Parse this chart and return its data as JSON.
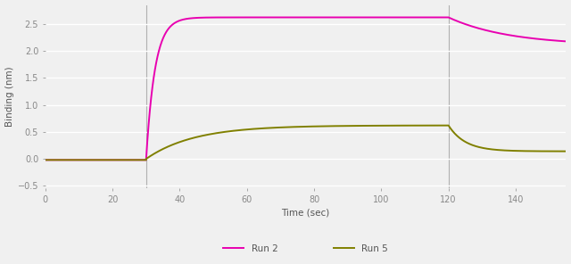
{
  "title": "",
  "xlabel": "Time (sec)",
  "ylabel": "Binding (nm)",
  "bg_color": "#f0f0f0",
  "plot_bg_color": "#f0f0f0",
  "grid_color": "#ffffff",
  "run2_color": "#e800b0",
  "run5_color": "#808000",
  "xlim": [
    0,
    155
  ],
  "ylim": [
    -0.55,
    2.85
  ],
  "xticks": [
    0,
    20,
    40,
    60,
    80,
    100,
    120,
    140
  ],
  "yticks": [
    -0.5,
    0.0,
    0.5,
    1.0,
    1.5,
    2.0,
    2.5
  ],
  "vline_x": 30,
  "vline2_x": 120,
  "association_start": 30,
  "dissociation_start": 120,
  "run2_assoc_max": 2.62,
  "run2_ka": 0.38,
  "run2_dissoc_asymptote": 2.1,
  "run2_kd": 0.055,
  "run5_assoc_max": 0.62,
  "run5_ka": 0.07,
  "run5_dissoc_asymptote": 0.14,
  "run5_kd": 0.2,
  "legend_run2": "Run 2",
  "legend_run5": "Run 5"
}
